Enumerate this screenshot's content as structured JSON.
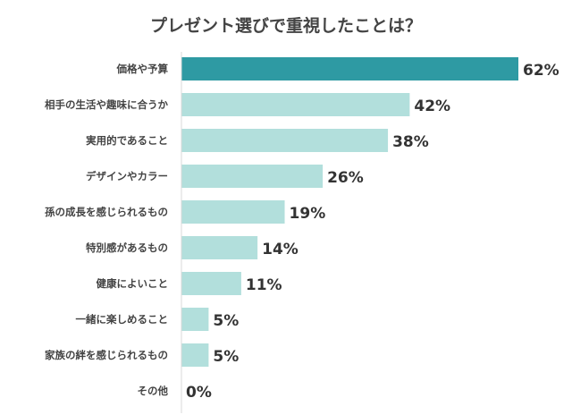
{
  "chart_data": {
    "type": "bar",
    "orientation": "horizontal",
    "title": "プレゼント選びで重視したことは？",
    "categories": [
      "価格や予算",
      "相手の生活や趣味に合うか",
      "実用的であること",
      "デザインやカラー",
      "孫の成長を感じられるもの",
      "特別感があるもの",
      "健康によいこと",
      "一緒に楽しめること",
      "家族の絆を感じられるもの",
      "その他"
    ],
    "values": [
      62,
      42,
      38,
      26,
      19,
      14,
      11,
      5,
      5,
      0
    ],
    "value_labels": [
      "62%",
      "42%",
      "38%",
      "26%",
      "19%",
      "14%",
      "11%",
      "5%",
      "5%",
      "0%"
    ],
    "unit": "%",
    "xlim": [
      0,
      62
    ],
    "grid": false,
    "colors": {
      "highlight": "#2e9aa3",
      "default": "#b2dfdc",
      "axis": "#d9d9d9"
    }
  }
}
